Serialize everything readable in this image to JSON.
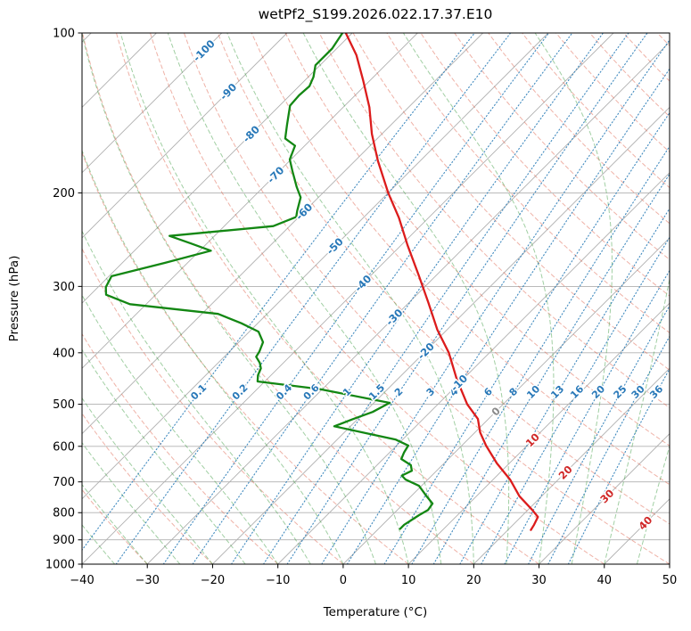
{
  "chart_data": {
    "type": "skewt_log_p",
    "title": "wetPf2_S199.2026.022.17.37.E10",
    "xlabel": "Temperature (°C)",
    "ylabel": "Pressure (hPa)",
    "xlim": [
      -40,
      50
    ],
    "pressure_lim": [
      100,
      1000
    ],
    "x_ticks": [
      -40,
      -30,
      -20,
      -10,
      0,
      10,
      20,
      30,
      40,
      50
    ],
    "y_ticks": [
      100,
      200,
      300,
      400,
      500,
      600,
      700,
      800,
      900,
      1000
    ],
    "skew_deg": 45,
    "isotherms_c": {
      "start": -160,
      "end": 50,
      "step": 10
    },
    "isotherm_labels": [
      {
        "t": -100,
        "p": 108
      },
      {
        "t": -90,
        "p": 129
      },
      {
        "t": -80,
        "p": 155
      },
      {
        "t": -70,
        "p": 185
      },
      {
        "t": -60,
        "p": 217
      },
      {
        "t": -50,
        "p": 252
      },
      {
        "t": -40,
        "p": 296
      },
      {
        "t": -30,
        "p": 343
      },
      {
        "t": -20,
        "p": 397
      },
      {
        "t": -10,
        "p": 456
      },
      {
        "t": 0,
        "p": 516
      },
      {
        "t": 10,
        "p": 584
      },
      {
        "t": 20,
        "p": 672
      },
      {
        "t": 30,
        "p": 745
      },
      {
        "t": 40,
        "p": 837
      }
    ],
    "mixing_ratio_g_kg": [
      0.1,
      0.2,
      0.4,
      0.6,
      1,
      1.5,
      2,
      3,
      4,
      6,
      8,
      10,
      13,
      16,
      20,
      25,
      30,
      36
    ],
    "mixing_label_pressure_hpa": 475,
    "dry_adiabats_theta_c": [
      -40,
      -30,
      -20,
      -10,
      0,
      10,
      20,
      30,
      40,
      50,
      60,
      70,
      80,
      90,
      100,
      110,
      120,
      130,
      140,
      150,
      160,
      170,
      180,
      190,
      200,
      210
    ],
    "moist_adiabats_t0_c": [
      -40,
      -35,
      -30,
      -25,
      -20,
      -15,
      -10,
      -5,
      0,
      5,
      10,
      15,
      20,
      25,
      30,
      35,
      40,
      45
    ],
    "series": [
      {
        "name": "temperature",
        "color": "#dc1c1c",
        "points_p_t": [
          [
            100,
            -81
          ],
          [
            110,
            -76
          ],
          [
            123,
            -71
          ],
          [
            138,
            -66
          ],
          [
            155,
            -61.5
          ],
          [
            174,
            -56.5
          ],
          [
            200,
            -50
          ],
          [
            223,
            -44.5
          ],
          [
            251,
            -39
          ],
          [
            287,
            -32.5
          ],
          [
            322,
            -27
          ],
          [
            362,
            -21.5
          ],
          [
            400,
            -16.2
          ],
          [
            448,
            -11
          ],
          [
            500,
            -5.5
          ],
          [
            533,
            -1.6
          ],
          [
            565,
            0.8
          ],
          [
            598,
            3.7
          ],
          [
            646,
            8.1
          ],
          [
            693,
            12.6
          ],
          [
            745,
            16.6
          ],
          [
            791,
            20.7
          ],
          [
            815,
            22.6
          ],
          [
            843,
            23.2
          ],
          [
            862,
            23.5
          ]
        ]
      },
      {
        "name": "dewpoint",
        "color": "#138713",
        "points_p_t": [
          [
            100,
            -81.5
          ],
          [
            107,
            -80.7
          ],
          [
            115,
            -80.7
          ],
          [
            121,
            -79.2
          ],
          [
            126,
            -78.4
          ],
          [
            131,
            -78.6
          ],
          [
            137,
            -78.4
          ],
          [
            149,
            -75.9
          ],
          [
            158,
            -74.1
          ],
          [
            163,
            -71.5
          ],
          [
            173,
            -70.2
          ],
          [
            182,
            -68.0
          ],
          [
            195,
            -64.9
          ],
          [
            204,
            -62.7
          ],
          [
            216,
            -61.2
          ],
          [
            222,
            -60.4
          ],
          [
            231,
            -62.5
          ],
          [
            241,
            -76.9
          ],
          [
            249,
            -72.5
          ],
          [
            257,
            -68.3
          ],
          [
            271,
            -73.5
          ],
          [
            287,
            -79.6
          ],
          [
            301,
            -78.8
          ],
          [
            311,
            -77.6
          ],
          [
            324,
            -72.5
          ],
          [
            338,
            -57.5
          ],
          [
            352,
            -52.5
          ],
          [
            365,
            -48.6
          ],
          [
            382,
            -46.3
          ],
          [
            398,
            -45.4
          ],
          [
            407,
            -45.1
          ],
          [
            418,
            -43.6
          ],
          [
            428,
            -42.6
          ],
          [
            441,
            -42.0
          ],
          [
            453,
            -41.1
          ],
          [
            468,
            -30.5
          ],
          [
            497,
            -17.6
          ],
          [
            517,
            -18.8
          ],
          [
            534,
            -20.8
          ],
          [
            550,
            -22.5
          ],
          [
            567,
            -16.5
          ],
          [
            583,
            -11.0
          ],
          [
            598,
            -8.2
          ],
          [
            616,
            -7.8
          ],
          [
            634,
            -7.2
          ],
          [
            651,
            -4.8
          ],
          [
            667,
            -3.8
          ],
          [
            681,
            -4.6
          ],
          [
            693,
            -3.4
          ],
          [
            712,
            -0.4
          ],
          [
            743,
            2.2
          ],
          [
            769,
            4.4
          ],
          [
            791,
            4.7
          ],
          [
            809,
            4.1
          ],
          [
            826,
            3.7
          ],
          [
            843,
            3.3
          ],
          [
            858,
            3.3
          ]
        ]
      }
    ],
    "colors": {
      "grid": "#b0b0b0",
      "frame": "#000000",
      "dry_adiabat": "#e0654f",
      "moist_adiabat": "#44a048",
      "mixing_line": "#2e7eb8",
      "isotherm_label_negative": "#2878b8",
      "isotherm_label_zero": "#8a8a8a",
      "isotherm_label_positive": "#d02828",
      "mixing_label": "#2878b8"
    }
  }
}
